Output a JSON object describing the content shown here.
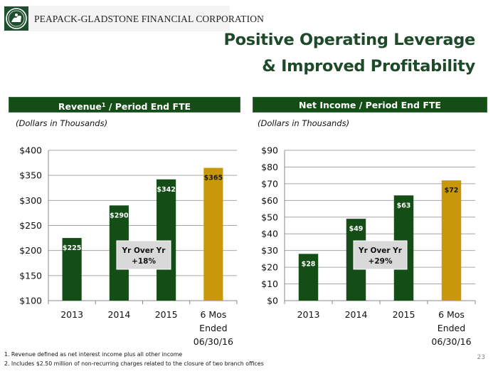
{
  "header": {
    "company_name": "PEAPACK-GLADSTONE FINANCIAL CORPORATION",
    "logo_icon": "seal-emblem-icon",
    "title_line1": "Positive Operating Leverage",
    "title_line2": "& Improved Profitability"
  },
  "colors": {
    "brand_green": "#154d17",
    "bar_green": "#154d17",
    "bar_gold": "#c8980a",
    "title_green": "#1e4a2a",
    "callout_bg": "#d9d9d9",
    "gridline": "#a6a6a6"
  },
  "panels": [
    {
      "header_main": "Revenue",
      "header_sup": "1",
      "header_rest": " / Period End FTE",
      "subtitle": "(Dollars in Thousands)"
    },
    {
      "header_main": "Net Income / Period End FTE",
      "header_sup": "",
      "header_rest": "",
      "subtitle": "(Dollars in Thousands)"
    }
  ],
  "chart_data": [
    {
      "type": "bar",
      "title": "Revenue / Period End FTE",
      "xlabel": "",
      "ylabel": "Dollars in Thousands",
      "categories": [
        "2013",
        "2014",
        "2015",
        "6 Mos\nEnded\n06/30/16"
      ],
      "category_lines": [
        [
          "2013"
        ],
        [
          "2014"
        ],
        [
          "2015"
        ],
        [
          "6 Mos",
          "Ended",
          "06/30/16"
        ]
      ],
      "values": [
        225,
        290,
        342,
        365
      ],
      "data_labels": [
        "$225",
        "$290",
        "$342",
        "$365"
      ],
      "bar_colors": [
        "green",
        "green",
        "green",
        "gold"
      ],
      "ylim": [
        100,
        400
      ],
      "yticks": [
        100,
        150,
        200,
        250,
        300,
        350,
        400
      ],
      "ytick_labels": [
        "$100",
        "$150",
        "$200",
        "$250",
        "$300",
        "$350",
        "$400"
      ],
      "grid": true,
      "annotation": {
        "line1": "Yr Over Yr",
        "line2": "+18%"
      }
    },
    {
      "type": "bar",
      "title": "Net Income / Period End FTE",
      "xlabel": "",
      "ylabel": "Dollars in Thousands",
      "categories": [
        "2013",
        "2014",
        "2015",
        "6 Mos\nEnded\n06/30/16"
      ],
      "category_lines": [
        [
          "2013"
        ],
        [
          "2014"
        ],
        [
          "2015"
        ],
        [
          "6 Mos",
          "Ended",
          "06/30/16"
        ]
      ],
      "values": [
        28,
        49,
        63,
        72
      ],
      "data_labels": [
        "$28",
        "$49",
        "$63",
        "$72"
      ],
      "bar_colors": [
        "green",
        "green",
        "green",
        "gold"
      ],
      "ylim": [
        0,
        90
      ],
      "yticks": [
        0,
        10,
        20,
        30,
        40,
        50,
        60,
        70,
        80,
        90
      ],
      "ytick_labels": [
        "$0",
        "$10",
        "$20",
        "$30",
        "$40",
        "$50",
        "$60",
        "$70",
        "$80",
        "$90"
      ],
      "grid": true,
      "annotation": {
        "line1": "Yr Over Yr",
        "line2": "+29%"
      }
    }
  ],
  "footnotes": [
    "1. Revenue defined as net interest income plus all other income",
    "2. Includes $2.50 million of non-recurring charges related to the closure of two branch offices"
  ],
  "page_number": "23"
}
